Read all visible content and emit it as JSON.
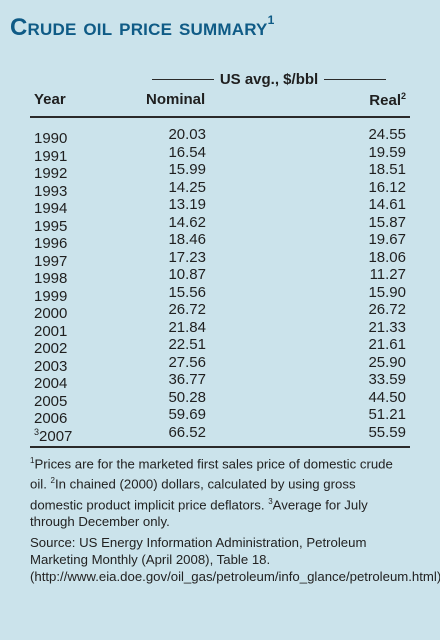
{
  "title": {
    "text": "Crude oil price summary",
    "sup": "1"
  },
  "group_header": "US avg., $/bbl",
  "columns": {
    "year": "Year",
    "nominal": "Nominal",
    "real": "Real",
    "real_sup": "2"
  },
  "rows": [
    {
      "year": "1990",
      "year_sup": "",
      "nominal": "20.03",
      "real": "24.55"
    },
    {
      "year": "1991",
      "year_sup": "",
      "nominal": "16.54",
      "real": "19.59"
    },
    {
      "year": "1992",
      "year_sup": "",
      "nominal": "15.99",
      "real": "18.51"
    },
    {
      "year": "1993",
      "year_sup": "",
      "nominal": "14.25",
      "real": "16.12"
    },
    {
      "year": "1994",
      "year_sup": "",
      "nominal": "13.19",
      "real": "14.61"
    },
    {
      "year": "1995",
      "year_sup": "",
      "nominal": "14.62",
      "real": "15.87"
    },
    {
      "year": "1996",
      "year_sup": "",
      "nominal": "18.46",
      "real": "19.67"
    },
    {
      "year": "1997",
      "year_sup": "",
      "nominal": "17.23",
      "real": "18.06"
    },
    {
      "year": "1998",
      "year_sup": "",
      "nominal": "10.87",
      "real": "11.27"
    },
    {
      "year": "1999",
      "year_sup": "",
      "nominal": "15.56",
      "real": "15.90"
    },
    {
      "year": "2000",
      "year_sup": "",
      "nominal": "26.72",
      "real": "26.72"
    },
    {
      "year": "2001",
      "year_sup": "",
      "nominal": "21.84",
      "real": "21.33"
    },
    {
      "year": "2002",
      "year_sup": "",
      "nominal": "22.51",
      "real": "21.61"
    },
    {
      "year": "2003",
      "year_sup": "",
      "nominal": "27.56",
      "real": "25.90"
    },
    {
      "year": "2004",
      "year_sup": "",
      "nominal": "36.77",
      "real": "33.59"
    },
    {
      "year": "2005",
      "year_sup": "",
      "nominal": "50.28",
      "real": "44.50"
    },
    {
      "year": "2006",
      "year_sup": "",
      "nominal": "59.69",
      "real": "51.21"
    },
    {
      "year": "2007",
      "year_sup": "3",
      "nominal": "66.52",
      "real": "55.59"
    }
  ],
  "notes": {
    "n1_sup": "1",
    "n1": "Prices are for the marketed first sales price of domestic crude oil.",
    "n2_sup": "2",
    "n2": "In chained (2000) dollars, calculated by using gross domestic product implicit price deflators.",
    "n3_sup": "3",
    "n3": "Average for July through December only."
  },
  "source": "Source: US Energy Information Administration, Petroleum Marketing Monthly (April 2008), Table 18. (http://www.eia.doe.gov/oil_gas/petroleum/info_glance/petroleum.html)"
}
